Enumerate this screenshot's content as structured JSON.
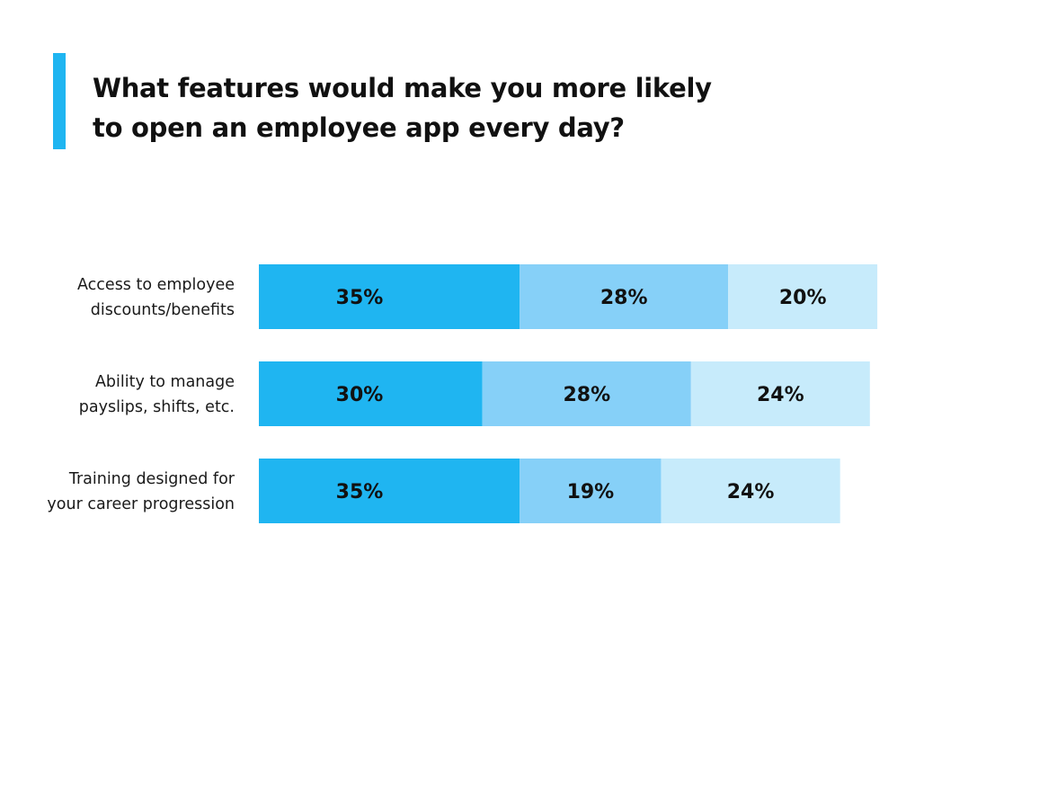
{
  "colors": {
    "accent": "#1fb5f1",
    "segment_dark": "#1fb5f1",
    "segment_mid": "#86d0f8",
    "segment_light": "#c7ebfb",
    "text": "#111111"
  },
  "chart_data": {
    "type": "bar",
    "orientation": "horizontal",
    "stacked": true,
    "title": "What features would make you more likely to open an employee app every day?",
    "categories": [
      [
        "Access to employee",
        "discounts/benefits"
      ],
      [
        "Ability to manage",
        "payslips, shifts, etc."
      ],
      [
        "Training designed for",
        "your career progression"
      ]
    ],
    "series": [
      {
        "color": "#1fb5f1",
        "values": [
          35,
          30,
          35
        ],
        "labels": [
          "35%",
          "30%",
          "35%"
        ]
      },
      {
        "color": "#86d0f8",
        "values": [
          28,
          28,
          19
        ],
        "labels": [
          "28%",
          "28%",
          "19%"
        ]
      },
      {
        "color": "#c7ebfb",
        "values": [
          20,
          24,
          24
        ],
        "labels": [
          "20%",
          "24%",
          "24%"
        ]
      }
    ],
    "grid": false,
    "legend": "none"
  }
}
